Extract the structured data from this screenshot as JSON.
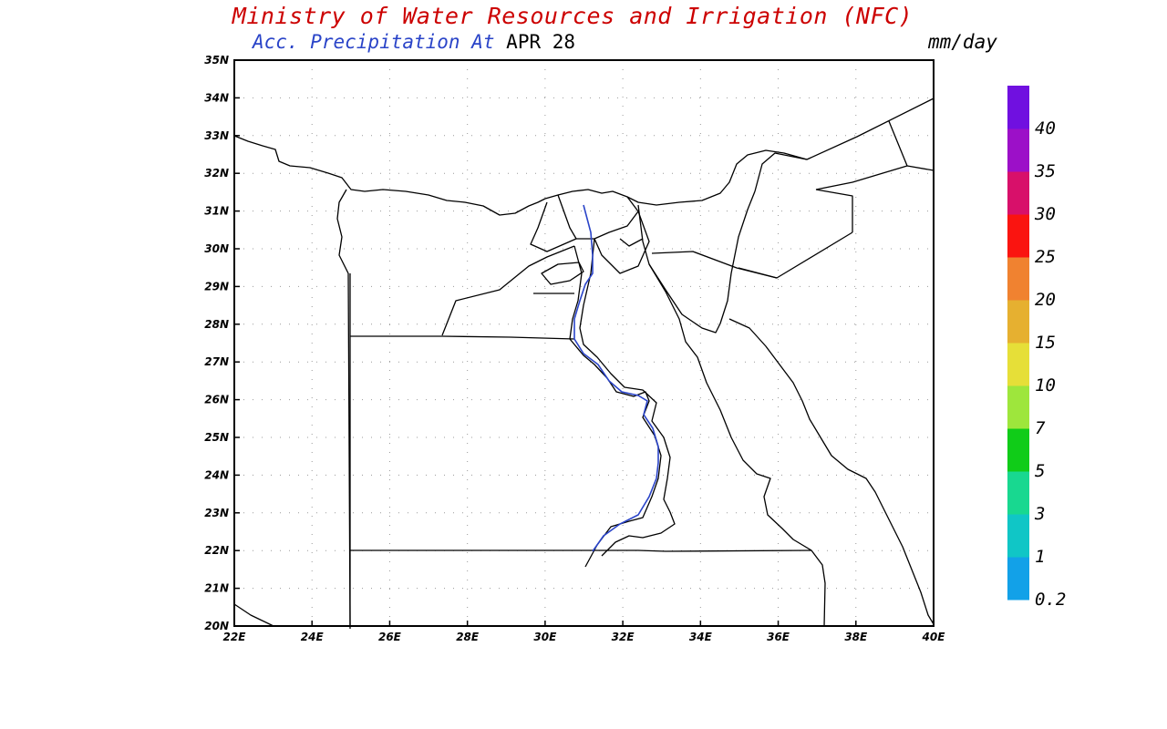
{
  "header": {
    "title": "Ministry of Water Resources and Irrigation (NFC)",
    "subtitle": "Acc. Precipitation  At",
    "date": "APR 28",
    "units": "mm/day"
  },
  "colors": {
    "title": "#cc0000",
    "subtitle": "#2a44c8",
    "frame": "#000000",
    "nile": "#2a44c8"
  },
  "map": {
    "lon_range": [
      22,
      40
    ],
    "lat_range": [
      20,
      35
    ],
    "grid": true,
    "lon_ticks": [
      "22E",
      "24E",
      "26E",
      "28E",
      "30E",
      "32E",
      "34E",
      "36E",
      "38E",
      "40E"
    ],
    "lat_ticks": [
      "20N",
      "21N",
      "22N",
      "23N",
      "24N",
      "25N",
      "26N",
      "27N",
      "28N",
      "29N",
      "30N",
      "31N",
      "32N",
      "33N",
      "34N",
      "35N"
    ],
    "region": "Egypt"
  },
  "colorbar": {
    "labels": [
      "0.2",
      "1",
      "3",
      "5",
      "7",
      "10",
      "15",
      "20",
      "25",
      "30",
      "35",
      "40"
    ],
    "colors": [
      "#12a1e8",
      "#10c6c6",
      "#18d890",
      "#10cc18",
      "#9ee63c",
      "#e6df38",
      "#e6b030",
      "#f08230",
      "#fa1410",
      "#d8106a",
      "#9c10c8",
      "#7010e0"
    ]
  }
}
